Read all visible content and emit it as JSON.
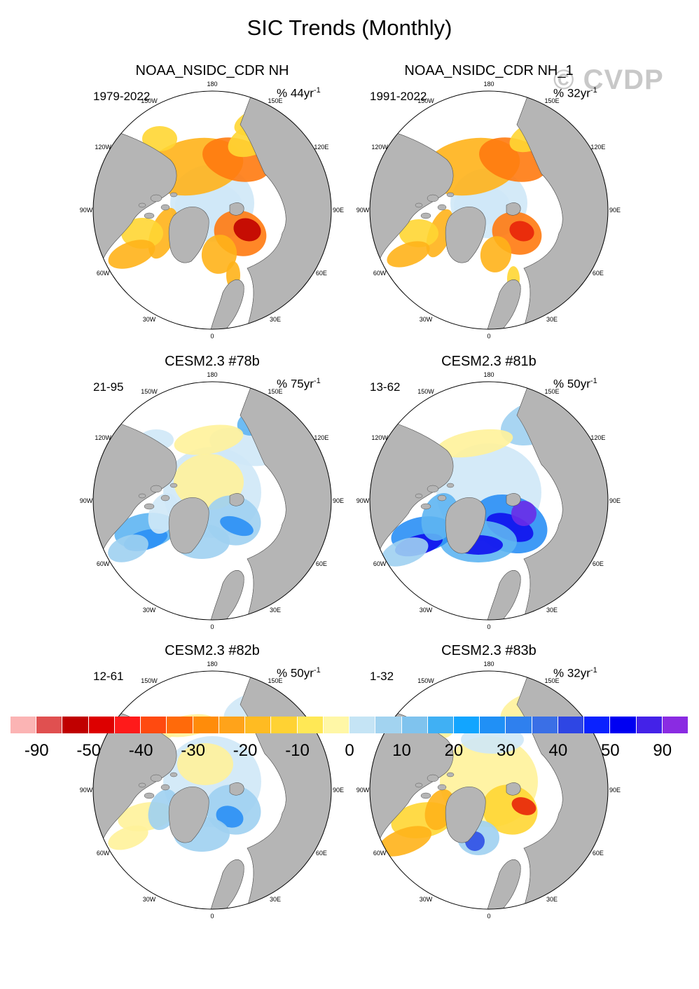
{
  "title": "SIC Trends (Monthly)",
  "watermark": "© CVDP",
  "lon_labels": [
    "180",
    "150E",
    "120E",
    "90E",
    "60E",
    "30E",
    "0",
    "30W",
    "60W",
    "90W",
    "120W",
    "150W"
  ],
  "panels": [
    {
      "name": "NOAA_NSIDC_CDR NH",
      "period": "1979-2022",
      "units": "% 44yr",
      "pattern": "obs1"
    },
    {
      "name": "NOAA_NSIDC_CDR NH_1",
      "period": "1991-2022",
      "units": "% 32yr",
      "pattern": "obs2"
    },
    {
      "name": "CESM2.3 #78b",
      "period": "21-95",
      "units": "% 75yr",
      "pattern": "m78"
    },
    {
      "name": "CESM2.3 #81b",
      "period": "13-62",
      "units": "% 50yr",
      "pattern": "m81"
    },
    {
      "name": "CESM2.3 #82b",
      "period": "12-61",
      "units": "% 50yr",
      "pattern": "m82"
    },
    {
      "name": "CESM2.3 #83b",
      "period": "1-32",
      "units": "% 32yr",
      "pattern": "m83"
    }
  ],
  "colorbar": {
    "colors": [
      "#fbb4b4",
      "#e05050",
      "#c00000",
      "#dd0000",
      "#ff1a1a",
      "#ff4a10",
      "#ff6a0a",
      "#ff8c0a",
      "#ffa31a",
      "#ffbb22",
      "#ffd233",
      "#ffe855",
      "#fff7a6",
      "#c5e4f5",
      "#a2d3f0",
      "#7fc3ee",
      "#40b0f4",
      "#12a5ff",
      "#2090f6",
      "#2f80ee",
      "#3a6fe6",
      "#2e46e4",
      "#0a22ff",
      "#0000f2",
      "#4422e8",
      "#8a2be2"
    ],
    "labels": [
      "-90",
      "-50",
      "-40",
      "-30",
      "-20",
      "-10",
      "0",
      "10",
      "20",
      "30",
      "40",
      "50",
      "90"
    ]
  }
}
